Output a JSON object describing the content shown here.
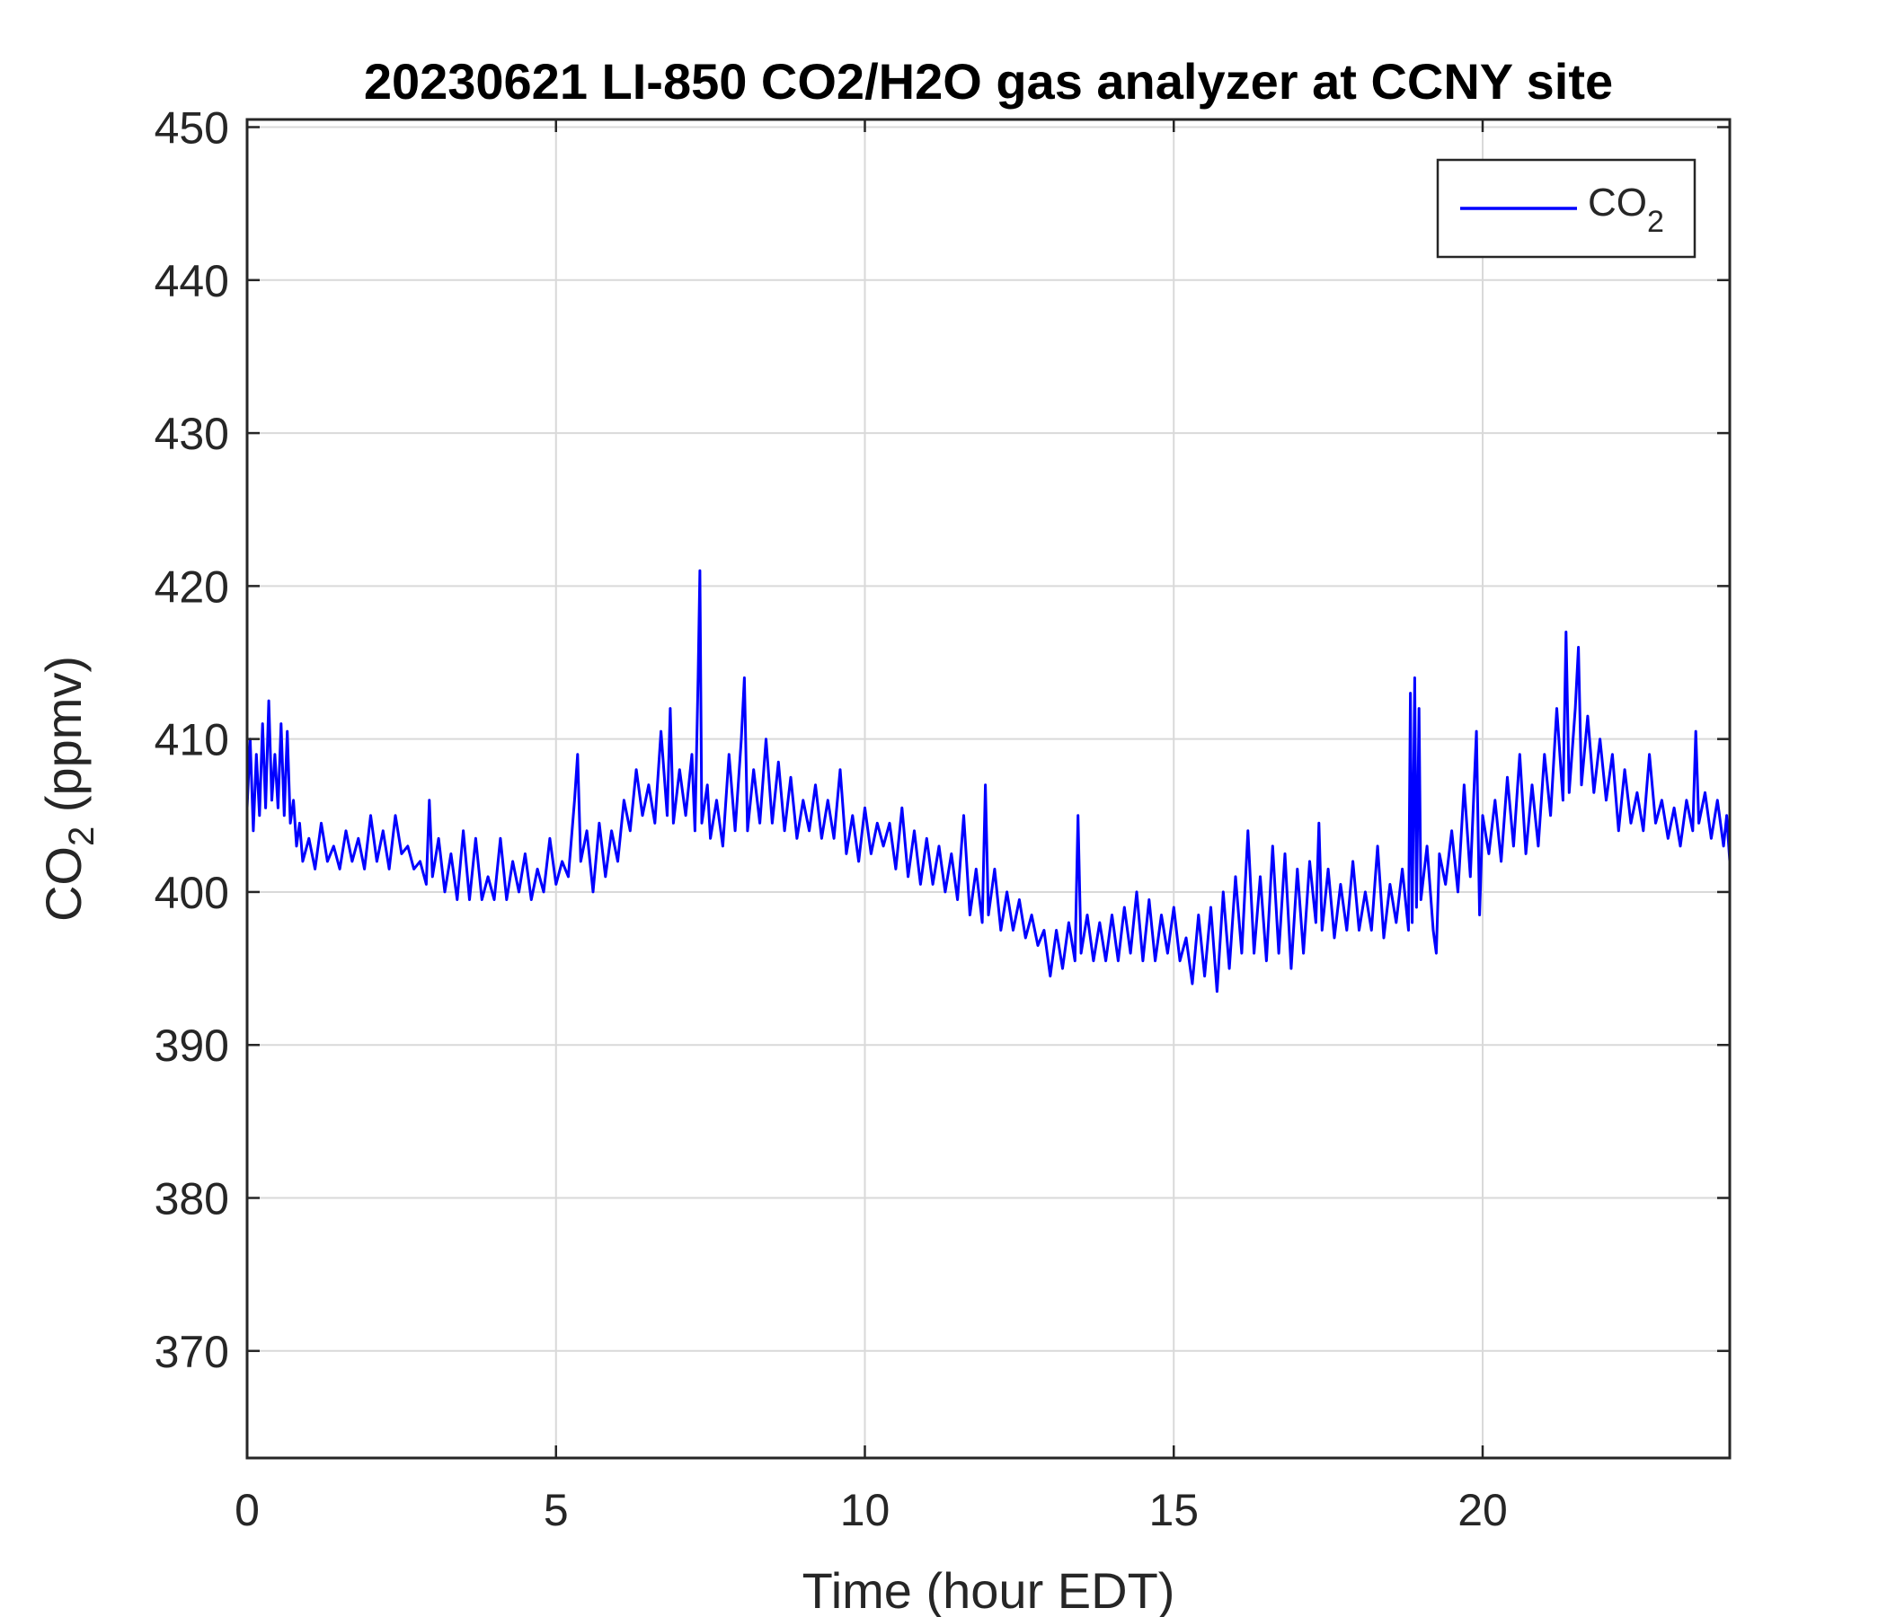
{
  "chart_data": {
    "type": "line",
    "title": "20230621 LI-850 CO2/H2O gas analyzer at CCNY site",
    "xlabel": "Time (hour EDT)",
    "ylabel": {
      "main": "CO",
      "sub": "2",
      "unit": " (ppmv)"
    },
    "xlim": [
      0,
      24
    ],
    "ylim": [
      363,
      450.5
    ],
    "xticks": [
      0,
      5,
      10,
      15,
      20
    ],
    "yticks": [
      370,
      380,
      390,
      400,
      410,
      420,
      430,
      440,
      450
    ],
    "grid": true,
    "legend": {
      "position": "top-right",
      "entries": [
        {
          "main": "CO",
          "sub": "2"
        }
      ]
    },
    "series": [
      {
        "name": "CO2",
        "color": "#0000ff",
        "points": [
          [
            0.0,
            405.5
          ],
          [
            0.05,
            410.0
          ],
          [
            0.1,
            404.0
          ],
          [
            0.15,
            409.0
          ],
          [
            0.2,
            405.0
          ],
          [
            0.25,
            411.0
          ],
          [
            0.3,
            405.5
          ],
          [
            0.35,
            412.5
          ],
          [
            0.4,
            406.0
          ],
          [
            0.45,
            409.0
          ],
          [
            0.5,
            405.5
          ],
          [
            0.55,
            411.0
          ],
          [
            0.6,
            405.0
          ],
          [
            0.65,
            410.5
          ],
          [
            0.7,
            404.5
          ],
          [
            0.75,
            406.0
          ],
          [
            0.8,
            403.0
          ],
          [
            0.85,
            404.5
          ],
          [
            0.9,
            402.0
          ],
          [
            1.0,
            403.5
          ],
          [
            1.1,
            401.5
          ],
          [
            1.2,
            404.5
          ],
          [
            1.3,
            402.0
          ],
          [
            1.4,
            403.0
          ],
          [
            1.5,
            401.5
          ],
          [
            1.6,
            404.0
          ],
          [
            1.7,
            402.0
          ],
          [
            1.8,
            403.5
          ],
          [
            1.9,
            401.5
          ],
          [
            2.0,
            405.0
          ],
          [
            2.1,
            402.0
          ],
          [
            2.2,
            404.0
          ],
          [
            2.3,
            401.5
          ],
          [
            2.4,
            405.0
          ],
          [
            2.5,
            402.5
          ],
          [
            2.6,
            403.0
          ],
          [
            2.7,
            401.5
          ],
          [
            2.8,
            402.0
          ],
          [
            2.9,
            400.5
          ],
          [
            2.95,
            406.0
          ],
          [
            3.0,
            401.0
          ],
          [
            3.1,
            403.5
          ],
          [
            3.2,
            400.0
          ],
          [
            3.3,
            402.5
          ],
          [
            3.4,
            399.5
          ],
          [
            3.5,
            404.0
          ],
          [
            3.6,
            399.5
          ],
          [
            3.7,
            403.5
          ],
          [
            3.8,
            399.5
          ],
          [
            3.9,
            401.0
          ],
          [
            4.0,
            399.5
          ],
          [
            4.1,
            403.5
          ],
          [
            4.2,
            399.5
          ],
          [
            4.3,
            402.0
          ],
          [
            4.4,
            400.0
          ],
          [
            4.5,
            402.5
          ],
          [
            4.6,
            399.5
          ],
          [
            4.7,
            401.5
          ],
          [
            4.8,
            400.0
          ],
          [
            4.9,
            403.5
          ],
          [
            5.0,
            400.5
          ],
          [
            5.1,
            402.0
          ],
          [
            5.2,
            401.0
          ],
          [
            5.3,
            406.0
          ],
          [
            5.35,
            409.0
          ],
          [
            5.4,
            402.0
          ],
          [
            5.5,
            404.0
          ],
          [
            5.6,
            400.0
          ],
          [
            5.7,
            404.5
          ],
          [
            5.8,
            401.0
          ],
          [
            5.9,
            404.0
          ],
          [
            6.0,
            402.0
          ],
          [
            6.1,
            406.0
          ],
          [
            6.2,
            404.0
          ],
          [
            6.3,
            408.0
          ],
          [
            6.4,
            405.0
          ],
          [
            6.5,
            407.0
          ],
          [
            6.6,
            404.5
          ],
          [
            6.7,
            410.5
          ],
          [
            6.8,
            405.0
          ],
          [
            6.85,
            412.0
          ],
          [
            6.9,
            404.5
          ],
          [
            7.0,
            408.0
          ],
          [
            7.1,
            405.0
          ],
          [
            7.2,
            409.0
          ],
          [
            7.25,
            404.0
          ],
          [
            7.3,
            414.0
          ],
          [
            7.33,
            421.0
          ],
          [
            7.36,
            404.5
          ],
          [
            7.45,
            407.0
          ],
          [
            7.5,
            403.5
          ],
          [
            7.6,
            406.0
          ],
          [
            7.7,
            403.0
          ],
          [
            7.8,
            409.0
          ],
          [
            7.9,
            404.0
          ],
          [
            8.0,
            410.0
          ],
          [
            8.05,
            414.0
          ],
          [
            8.1,
            404.0
          ],
          [
            8.2,
            408.0
          ],
          [
            8.3,
            404.5
          ],
          [
            8.4,
            410.0
          ],
          [
            8.5,
            404.5
          ],
          [
            8.6,
            408.5
          ],
          [
            8.7,
            404.0
          ],
          [
            8.8,
            407.5
          ],
          [
            8.9,
            403.5
          ],
          [
            9.0,
            406.0
          ],
          [
            9.1,
            404.0
          ],
          [
            9.2,
            407.0
          ],
          [
            9.3,
            403.5
          ],
          [
            9.4,
            406.0
          ],
          [
            9.5,
            403.5
          ],
          [
            9.6,
            408.0
          ],
          [
            9.7,
            402.5
          ],
          [
            9.8,
            405.0
          ],
          [
            9.9,
            402.0
          ],
          [
            10.0,
            405.5
          ],
          [
            10.1,
            402.5
          ],
          [
            10.2,
            404.5
          ],
          [
            10.3,
            403.0
          ],
          [
            10.4,
            404.5
          ],
          [
            10.5,
            401.5
          ],
          [
            10.6,
            405.5
          ],
          [
            10.7,
            401.0
          ],
          [
            10.8,
            404.0
          ],
          [
            10.9,
            400.5
          ],
          [
            11.0,
            403.5
          ],
          [
            11.1,
            400.5
          ],
          [
            11.2,
            403.0
          ],
          [
            11.3,
            400.0
          ],
          [
            11.4,
            402.5
          ],
          [
            11.5,
            399.5
          ],
          [
            11.6,
            405.0
          ],
          [
            11.7,
            398.5
          ],
          [
            11.8,
            401.5
          ],
          [
            11.9,
            398.0
          ],
          [
            11.95,
            407.0
          ],
          [
            12.0,
            398.5
          ],
          [
            12.1,
            401.5
          ],
          [
            12.2,
            397.5
          ],
          [
            12.3,
            400.0
          ],
          [
            12.4,
            397.5
          ],
          [
            12.5,
            399.5
          ],
          [
            12.6,
            397.0
          ],
          [
            12.7,
            398.5
          ],
          [
            12.8,
            396.5
          ],
          [
            12.9,
            397.5
          ],
          [
            13.0,
            394.5
          ],
          [
            13.1,
            397.5
          ],
          [
            13.2,
            395.0
          ],
          [
            13.3,
            398.0
          ],
          [
            13.4,
            395.5
          ],
          [
            13.45,
            405.0
          ],
          [
            13.5,
            396.0
          ],
          [
            13.6,
            398.5
          ],
          [
            13.7,
            395.5
          ],
          [
            13.8,
            398.0
          ],
          [
            13.9,
            395.5
          ],
          [
            14.0,
            398.5
          ],
          [
            14.1,
            395.5
          ],
          [
            14.2,
            399.0
          ],
          [
            14.3,
            396.0
          ],
          [
            14.4,
            400.0
          ],
          [
            14.5,
            395.5
          ],
          [
            14.6,
            399.5
          ],
          [
            14.7,
            395.5
          ],
          [
            14.8,
            398.5
          ],
          [
            14.9,
            396.0
          ],
          [
            15.0,
            399.0
          ],
          [
            15.1,
            395.5
          ],
          [
            15.2,
            397.0
          ],
          [
            15.3,
            394.0
          ],
          [
            15.4,
            398.5
          ],
          [
            15.5,
            394.5
          ],
          [
            15.6,
            399.0
          ],
          [
            15.7,
            393.5
          ],
          [
            15.8,
            400.0
          ],
          [
            15.9,
            395.0
          ],
          [
            16.0,
            401.0
          ],
          [
            16.1,
            396.0
          ],
          [
            16.2,
            404.0
          ],
          [
            16.3,
            396.0
          ],
          [
            16.4,
            401.0
          ],
          [
            16.5,
            395.5
          ],
          [
            16.6,
            403.0
          ],
          [
            16.7,
            396.0
          ],
          [
            16.8,
            402.5
          ],
          [
            16.9,
            395.0
          ],
          [
            17.0,
            401.5
          ],
          [
            17.1,
            396.0
          ],
          [
            17.2,
            402.0
          ],
          [
            17.3,
            398.0
          ],
          [
            17.35,
            404.5
          ],
          [
            17.4,
            397.5
          ],
          [
            17.5,
            401.5
          ],
          [
            17.6,
            397.0
          ],
          [
            17.7,
            400.5
          ],
          [
            17.8,
            397.5
          ],
          [
            17.9,
            402.0
          ],
          [
            18.0,
            397.5
          ],
          [
            18.1,
            400.0
          ],
          [
            18.2,
            397.5
          ],
          [
            18.3,
            403.0
          ],
          [
            18.4,
            397.0
          ],
          [
            18.5,
            400.5
          ],
          [
            18.6,
            398.0
          ],
          [
            18.7,
            401.5
          ],
          [
            18.8,
            397.5
          ],
          [
            18.83,
            413.0
          ],
          [
            18.86,
            398.0
          ],
          [
            18.9,
            414.0
          ],
          [
            18.93,
            399.0
          ],
          [
            18.97,
            412.0
          ],
          [
            19.0,
            399.5
          ],
          [
            19.1,
            403.0
          ],
          [
            19.2,
            397.5
          ],
          [
            19.25,
            396.0
          ],
          [
            19.3,
            402.5
          ],
          [
            19.4,
            400.5
          ],
          [
            19.5,
            404.0
          ],
          [
            19.6,
            400.0
          ],
          [
            19.7,
            407.0
          ],
          [
            19.8,
            401.0
          ],
          [
            19.9,
            410.5
          ],
          [
            19.95,
            398.5
          ],
          [
            20.0,
            405.0
          ],
          [
            20.1,
            402.5
          ],
          [
            20.2,
            406.0
          ],
          [
            20.3,
            402.0
          ],
          [
            20.4,
            407.5
          ],
          [
            20.5,
            403.0
          ],
          [
            20.6,
            409.0
          ],
          [
            20.7,
            402.5
          ],
          [
            20.8,
            407.0
          ],
          [
            20.9,
            403.0
          ],
          [
            21.0,
            409.0
          ],
          [
            21.1,
            405.0
          ],
          [
            21.2,
            412.0
          ],
          [
            21.3,
            406.0
          ],
          [
            21.35,
            417.0
          ],
          [
            21.4,
            406.5
          ],
          [
            21.5,
            412.0
          ],
          [
            21.55,
            416.0
          ],
          [
            21.6,
            407.0
          ],
          [
            21.7,
            411.5
          ],
          [
            21.8,
            406.5
          ],
          [
            21.9,
            410.0
          ],
          [
            22.0,
            406.0
          ],
          [
            22.1,
            409.0
          ],
          [
            22.2,
            404.0
          ],
          [
            22.3,
            408.0
          ],
          [
            22.4,
            404.5
          ],
          [
            22.5,
            406.5
          ],
          [
            22.6,
            404.0
          ],
          [
            22.7,
            409.0
          ],
          [
            22.8,
            404.5
          ],
          [
            22.9,
            406.0
          ],
          [
            23.0,
            403.5
          ],
          [
            23.1,
            405.5
          ],
          [
            23.2,
            403.0
          ],
          [
            23.3,
            406.0
          ],
          [
            23.4,
            404.0
          ],
          [
            23.45,
            410.5
          ],
          [
            23.5,
            404.5
          ],
          [
            23.6,
            406.5
          ],
          [
            23.7,
            403.5
          ],
          [
            23.8,
            406.0
          ],
          [
            23.9,
            403.0
          ],
          [
            23.95,
            405.0
          ],
          [
            24.0,
            402.0
          ]
        ]
      }
    ]
  }
}
